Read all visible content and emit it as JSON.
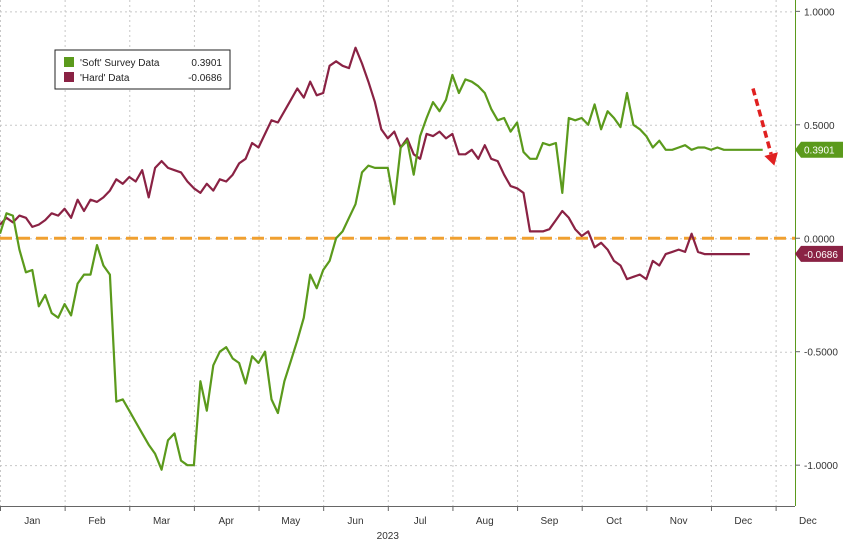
{
  "chart_data": {
    "type": "line",
    "title": "",
    "xlabel": "",
    "ylabel": "",
    "ylim": [
      -1.18,
      1.05
    ],
    "xlim": [
      0,
      12.3
    ],
    "grid": true,
    "legend_placement": "top-left",
    "x_tick_labels": [
      "Jan",
      "Feb",
      "Mar",
      "Apr",
      "May",
      "Jun",
      "Jul",
      "Aug",
      "Sep",
      "Oct",
      "Nov",
      "Dec",
      "Dec"
    ],
    "year_label": "2023",
    "y_ticks": [
      {
        "value": 1.0,
        "label": "1.0000"
      },
      {
        "value": 0.5,
        "label": "0.5000"
      },
      {
        "value": 0.0,
        "label": "0.0000"
      },
      {
        "value": -0.5,
        "label": "-0.5000"
      },
      {
        "value": -1.0,
        "label": "-1.0000"
      }
    ],
    "zero_line": {
      "value": 0.0,
      "color": "#f0a030"
    },
    "series": [
      {
        "name": "'Soft' Survey Data",
        "last_value": "0.3901",
        "color": "#5b9a1c",
        "x": [
          0.0,
          0.1,
          0.2,
          0.3,
          0.4,
          0.5,
          0.6,
          0.7,
          0.8,
          0.9,
          1.0,
          1.1,
          1.2,
          1.3,
          1.4,
          1.5,
          1.6,
          1.7,
          1.8,
          1.9,
          2.0,
          2.1,
          2.2,
          2.3,
          2.4,
          2.5,
          2.6,
          2.7,
          2.8,
          2.9,
          3.0,
          3.1,
          3.2,
          3.3,
          3.4,
          3.5,
          3.6,
          3.7,
          3.8,
          3.9,
          4.0,
          4.1,
          4.2,
          4.3,
          4.4,
          4.5,
          4.6,
          4.7,
          4.8,
          4.9,
          5.0,
          5.1,
          5.2,
          5.3,
          5.4,
          5.5,
          5.6,
          5.7,
          5.8,
          5.9,
          6.0,
          6.1,
          6.2,
          6.3,
          6.4,
          6.5,
          6.6,
          6.7,
          6.8,
          6.9,
          7.0,
          7.1,
          7.2,
          7.3,
          7.4,
          7.5,
          7.6,
          7.7,
          7.8,
          7.9,
          8.0,
          8.1,
          8.2,
          8.3,
          8.4,
          8.5,
          8.6,
          8.7,
          8.8,
          8.9,
          9.0,
          9.1,
          9.2,
          9.3,
          9.4,
          9.5,
          9.6,
          9.7,
          9.8,
          9.9,
          10.0,
          10.1,
          10.2,
          10.3,
          10.4,
          10.5,
          10.6,
          10.7,
          10.8,
          10.9,
          11.0,
          11.1,
          11.2,
          11.3,
          11.4,
          11.5,
          11.6,
          11.7,
          11.8
        ],
        "values": [
          0.02,
          0.11,
          0.1,
          -0.05,
          -0.15,
          -0.14,
          -0.3,
          -0.25,
          -0.33,
          -0.35,
          -0.29,
          -0.34,
          -0.2,
          -0.16,
          -0.16,
          -0.03,
          -0.12,
          -0.16,
          -0.72,
          -0.71,
          -0.76,
          -0.81,
          -0.86,
          -0.91,
          -0.95,
          -1.02,
          -0.89,
          -0.86,
          -0.98,
          -1.0,
          -1.0,
          -0.63,
          -0.76,
          -0.56,
          -0.5,
          -0.48,
          -0.53,
          -0.55,
          -0.64,
          -0.52,
          -0.55,
          -0.5,
          -0.71,
          -0.77,
          -0.63,
          -0.54,
          -0.45,
          -0.35,
          -0.16,
          -0.22,
          -0.14,
          -0.1,
          0.0,
          0.03,
          0.09,
          0.15,
          0.29,
          0.32,
          0.31,
          0.31,
          0.31,
          0.15,
          0.4,
          0.43,
          0.28,
          0.45,
          0.53,
          0.6,
          0.56,
          0.61,
          0.72,
          0.64,
          0.7,
          0.69,
          0.67,
          0.64,
          0.57,
          0.52,
          0.53,
          0.47,
          0.51,
          0.38,
          0.35,
          0.35,
          0.42,
          0.41,
          0.42,
          0.2,
          0.53,
          0.52,
          0.53,
          0.5,
          0.59,
          0.48,
          0.56,
          0.53,
          0.49,
          0.64,
          0.5,
          0.48,
          0.45,
          0.4,
          0.43,
          0.39,
          0.39,
          0.4,
          0.41,
          0.39,
          0.4,
          0.4,
          0.39,
          0.4,
          0.39,
          0.39,
          0.39,
          0.39,
          0.39,
          0.39,
          0.39
        ]
      },
      {
        "name": "'Hard' Data",
        "last_value": "-0.0686",
        "color": "#8a2244",
        "x": [
          0.0,
          0.1,
          0.2,
          0.3,
          0.4,
          0.5,
          0.6,
          0.7,
          0.8,
          0.9,
          1.0,
          1.1,
          1.2,
          1.3,
          1.4,
          1.5,
          1.6,
          1.7,
          1.8,
          1.9,
          2.0,
          2.1,
          2.2,
          2.3,
          2.4,
          2.5,
          2.6,
          2.7,
          2.8,
          2.9,
          3.0,
          3.1,
          3.2,
          3.3,
          3.4,
          3.5,
          3.6,
          3.7,
          3.8,
          3.9,
          4.0,
          4.1,
          4.2,
          4.3,
          4.4,
          4.5,
          4.6,
          4.7,
          4.8,
          4.9,
          5.0,
          5.1,
          5.2,
          5.3,
          5.4,
          5.5,
          5.6,
          5.7,
          5.8,
          5.9,
          6.0,
          6.1,
          6.2,
          6.3,
          6.4,
          6.5,
          6.6,
          6.7,
          6.8,
          6.9,
          7.0,
          7.1,
          7.2,
          7.3,
          7.4,
          7.5,
          7.6,
          7.7,
          7.8,
          7.9,
          8.0,
          8.1,
          8.2,
          8.3,
          8.4,
          8.5,
          8.6,
          8.7,
          8.8,
          8.9,
          9.0,
          9.1,
          9.2,
          9.3,
          9.4,
          9.5,
          9.6,
          9.7,
          9.8,
          9.9,
          10.0,
          10.1,
          10.2,
          10.3,
          10.4,
          10.5,
          10.6,
          10.7,
          10.8,
          10.9,
          11.0,
          11.1,
          11.2,
          11.3,
          11.4,
          11.5,
          11.6
        ],
        "values": [
          0.06,
          0.09,
          0.07,
          0.1,
          0.09,
          0.05,
          0.06,
          0.08,
          0.11,
          0.1,
          0.13,
          0.09,
          0.17,
          0.12,
          0.17,
          0.16,
          0.18,
          0.21,
          0.26,
          0.24,
          0.27,
          0.25,
          0.3,
          0.18,
          0.31,
          0.34,
          0.31,
          0.3,
          0.29,
          0.25,
          0.22,
          0.2,
          0.24,
          0.21,
          0.26,
          0.25,
          0.28,
          0.33,
          0.35,
          0.42,
          0.4,
          0.46,
          0.52,
          0.51,
          0.56,
          0.61,
          0.66,
          0.62,
          0.69,
          0.63,
          0.64,
          0.76,
          0.78,
          0.76,
          0.75,
          0.84,
          0.77,
          0.69,
          0.6,
          0.48,
          0.44,
          0.47,
          0.4,
          0.44,
          0.37,
          0.35,
          0.46,
          0.45,
          0.47,
          0.44,
          0.46,
          0.37,
          0.37,
          0.39,
          0.35,
          0.41,
          0.35,
          0.34,
          0.28,
          0.23,
          0.22,
          0.2,
          0.03,
          0.03,
          0.03,
          0.04,
          0.08,
          0.12,
          0.09,
          0.04,
          0.01,
          0.03,
          -0.04,
          -0.02,
          -0.05,
          -0.1,
          -0.12,
          -0.18,
          -0.17,
          -0.16,
          -0.18,
          -0.1,
          -0.12,
          -0.07,
          -0.06,
          -0.05,
          -0.06,
          0.02,
          -0.06,
          -0.07,
          -0.07,
          -0.07,
          -0.07,
          -0.07,
          -0.07,
          -0.07,
          -0.07
        ]
      }
    ],
    "arrow": {
      "color": "#e02020",
      "x_from": 11.65,
      "y_from": 0.66,
      "x_to": 11.98,
      "y_to": 0.32
    }
  }
}
